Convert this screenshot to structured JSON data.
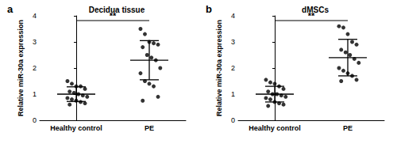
{
  "chart_data": [
    {
      "type": "scatter",
      "label": "a",
      "title": "Decidua tissue",
      "categories": [
        "Healthy control",
        "PE"
      ],
      "ylabel": "Relative miR-30a expression",
      "ylim": [
        0,
        4
      ],
      "yticks": [
        0,
        1,
        2,
        3,
        4
      ],
      "grid": false,
      "color": "#000000",
      "values": [
        [
          1.5,
          1.4,
          1.3,
          1.3,
          1.2,
          1.1,
          1.05,
          1.0,
          0.95,
          0.9,
          0.85,
          0.8,
          0.75,
          0.7,
          0.65,
          0.6
        ],
        [
          3.5,
          3.3,
          3.0,
          2.95,
          2.9,
          2.8,
          2.5,
          2.4,
          2.3,
          2.0,
          1.8,
          1.5,
          1.4,
          1.3,
          0.9,
          0.75
        ]
      ],
      "mean": [
        1.0,
        2.3
      ],
      "sd": [
        0.28,
        0.75
      ],
      "annotation": "**"
    },
    {
      "type": "scatter",
      "label": "b",
      "title": "dMSCs",
      "categories": [
        "Healthy control",
        "PE"
      ],
      "ylabel": "Relative miR-30a expression",
      "ylim": [
        0,
        4
      ],
      "yticks": [
        0,
        1,
        2,
        3,
        4
      ],
      "grid": false,
      "color": "#000000",
      "values": [
        [
          1.55,
          1.45,
          1.4,
          1.3,
          1.2,
          1.1,
          1.0,
          1.0,
          0.95,
          0.9,
          0.85,
          0.8,
          0.7,
          0.65,
          0.6,
          0.55
        ],
        [
          3.6,
          3.55,
          3.3,
          3.0,
          2.9,
          2.7,
          2.6,
          2.5,
          2.35,
          2.2,
          2.0,
          1.9,
          1.8,
          1.7,
          1.55,
          1.5
        ]
      ],
      "mean": [
        1.0,
        2.4
      ],
      "sd": [
        0.3,
        0.7
      ],
      "annotation": "**"
    }
  ]
}
